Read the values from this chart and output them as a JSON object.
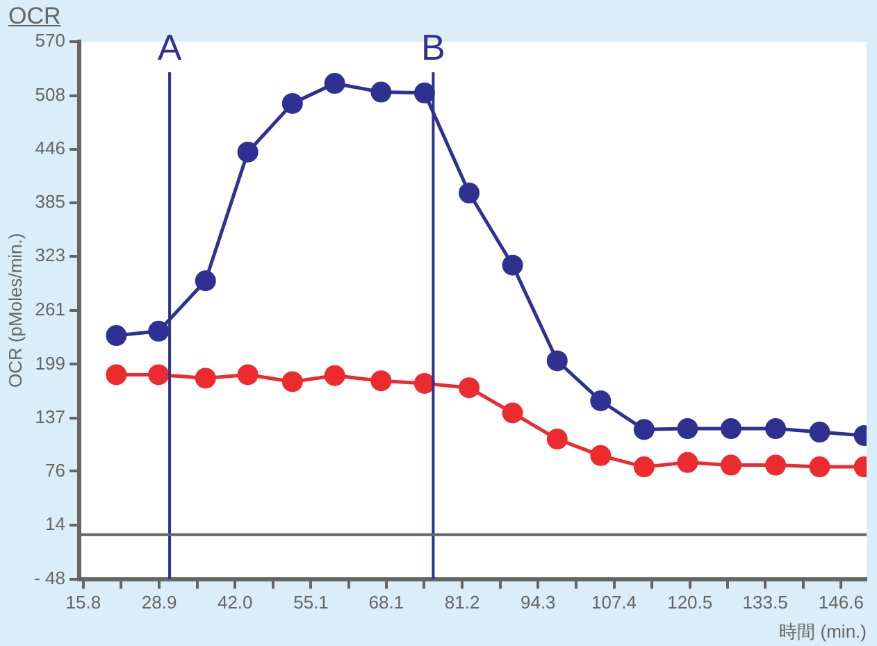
{
  "chart_data": {
    "type": "line",
    "title": "OCR",
    "xlabel": "時間 (min.)",
    "ylabel": "OCR (pMoles/min.)",
    "x": [
      21.5,
      28.8,
      36.9,
      44.2,
      51.9,
      59.2,
      67.2,
      74.7,
      82.4,
      89.9,
      97.6,
      105.1,
      112.6,
      120.1,
      127.6,
      135.3,
      142.9,
      150.6
    ],
    "series": [
      {
        "color": "#2e3192",
        "values": [
          232,
          237,
          295,
          443,
          499,
          522,
          512,
          511,
          396,
          313,
          203,
          157,
          124,
          125,
          125,
          125,
          121,
          117
        ]
      },
      {
        "color": "#ed2a2e",
        "values": [
          187,
          187,
          183,
          187,
          179,
          186,
          180,
          177,
          172,
          143,
          113,
          94,
          81,
          86,
          83,
          83,
          81,
          81
        ]
      }
    ],
    "xlim": [
      15.1,
      151
    ],
    "xticks": [
      15.8,
      {
        "value": 22.35,
        "label": null
      },
      28.9,
      {
        "value": 35.45,
        "label": null
      },
      {
        "value": 42,
        "label": "42.0"
      },
      {
        "value": 48.55,
        "label": null
      },
      55.1,
      {
        "value": 61.6,
        "label": null
      },
      68.1,
      {
        "value": 74.65,
        "label": null
      },
      81.2,
      {
        "value": 87.75,
        "label": null
      },
      94.3,
      {
        "value": 100.85,
        "label": null
      },
      107.4,
      {
        "value": 113.95,
        "label": null
      },
      120.5,
      {
        "value": 127.0,
        "label": null
      },
      133.5,
      {
        "value": 140.05,
        "label": null
      },
      146.6
    ],
    "ylim": [
      -48,
      570
    ],
    "yticks": [
      {
        "value": -48,
        "label": "- 48"
      },
      14,
      76,
      137,
      199,
      261,
      323,
      385,
      446,
      508,
      570
    ],
    "ref_lines": [
      {
        "axis": "x",
        "value": 30.7,
        "label": "A",
        "color": "#2e3192"
      },
      {
        "axis": "x",
        "value": 76.2,
        "label": "B",
        "color": "#2e3192"
      },
      {
        "axis": "y",
        "value": 3,
        "color": "#666666"
      }
    ],
    "grid": false,
    "legend": false,
    "marker": "circle",
    "line_style": "solid"
  }
}
